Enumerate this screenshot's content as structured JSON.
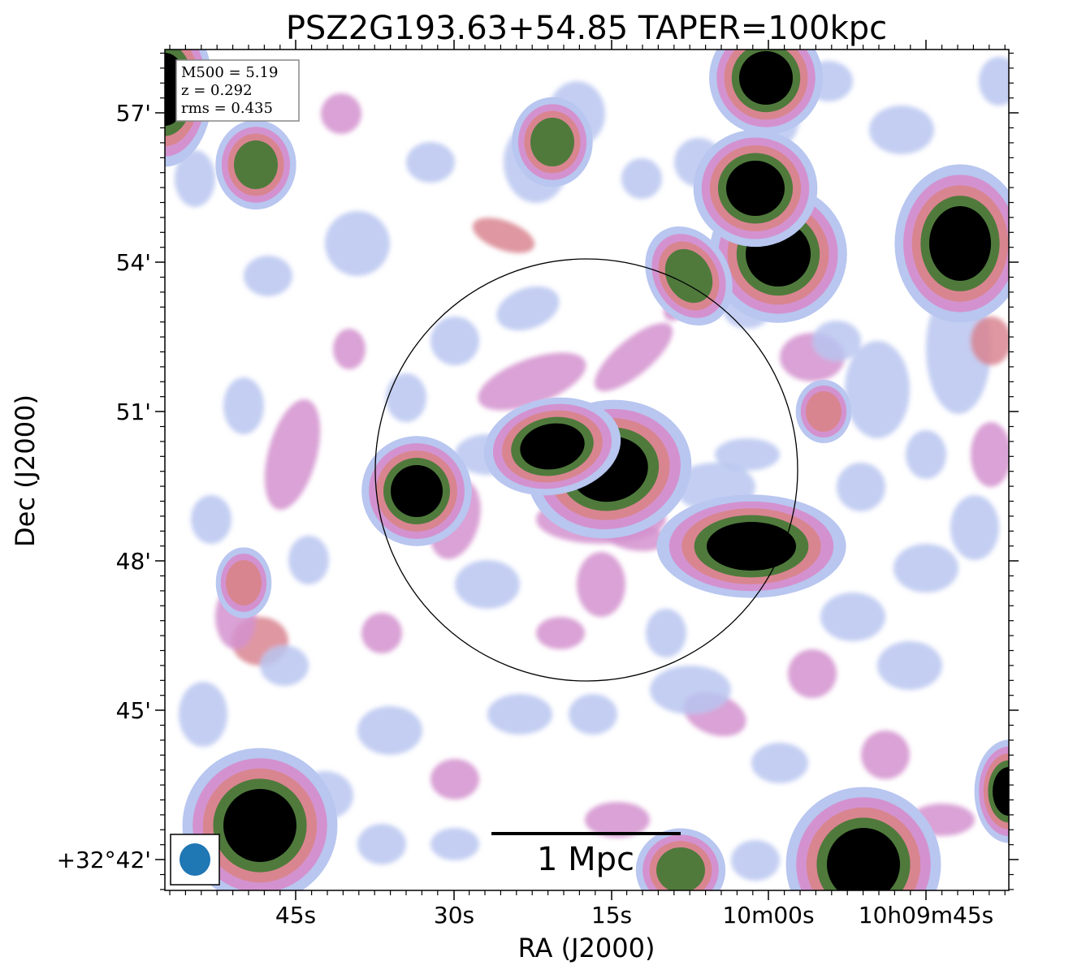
{
  "chart_data": {
    "type": "heatmap",
    "title": "PSZ2G193.63+54.85 TAPER=100kpc",
    "xlabel": "RA (J2000)",
    "ylabel": "Dec (J2000)",
    "x_tick_labels": [
      "45s",
      "30s",
      "15s",
      "10m00s",
      "10h09m45s"
    ],
    "y_tick_labels": [
      "57'",
      "54'",
      "51'",
      "48'",
      "45'",
      "+32°42'"
    ],
    "info_box": [
      "M500 = 5.19",
      "z = 0.292",
      "rms = 0.435"
    ],
    "scalebar_label": "1 Mpc",
    "colormap": [
      "#ffffff",
      "#c8ecea",
      "#b8c6f0",
      "#d392cf",
      "#d98590",
      "#4f7a3c",
      "#000000"
    ],
    "beam_color": "#1f77b4"
  }
}
